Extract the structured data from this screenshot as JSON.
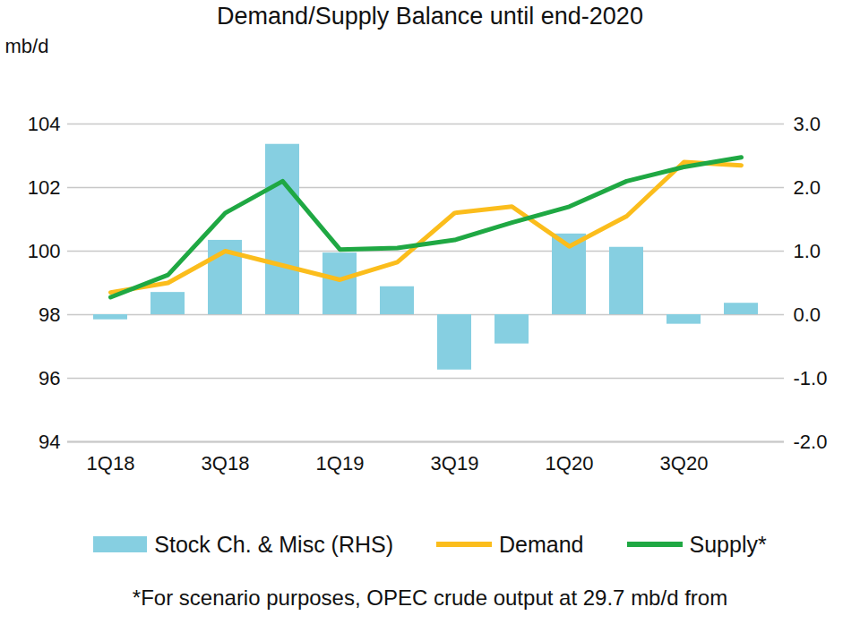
{
  "chart_data": {
    "type": "bar+line",
    "title": "Demand/Supply Balance until end-2020",
    "y_label": "mb/d",
    "caption": "*For scenario purposes, OPEC crude output at 29.7 mb/d from",
    "categories": [
      "1Q18",
      null,
      "3Q18",
      null,
      "1Q19",
      null,
      "3Q19",
      null,
      "1Q20",
      null,
      "3Q20",
      null
    ],
    "series": [
      {
        "name": "Stock Ch. & Misc (RHS)",
        "type": "bar",
        "axis": "y2",
        "color": "#86cfe1",
        "values": [
          -0.08,
          0.35,
          1.17,
          2.68,
          0.97,
          0.44,
          -0.87,
          -0.46,
          1.27,
          1.06,
          -0.15,
          0.18
        ]
      },
      {
        "name": "Demand",
        "type": "line",
        "color": "#fbbd1c",
        "values": [
          98.7,
          99.0,
          100.0,
          99.55,
          99.1,
          99.65,
          101.2,
          101.4,
          100.15,
          101.1,
          102.8,
          102.7
        ]
      },
      {
        "name": "Supply*",
        "type": "line",
        "color": "#1fa843",
        "values": [
          98.55,
          99.25,
          101.2,
          102.2,
          100.05,
          100.1,
          100.35,
          100.9,
          101.4,
          102.2,
          102.65,
          102.95
        ]
      }
    ],
    "ylim": [
      94,
      104
    ],
    "yticks": [
      94,
      96,
      98,
      100,
      102,
      104
    ],
    "y2lim": [
      -2,
      3
    ],
    "y2ticks": [
      {
        "value": -2,
        "label": "-2.0"
      },
      {
        "value": -1,
        "label": "-1.0"
      },
      {
        "value": 0,
        "label": "0.0"
      },
      {
        "value": 1,
        "label": "1.0"
      },
      {
        "value": 2,
        "label": "2.0"
      },
      {
        "value": 3,
        "label": "3.0"
      }
    ],
    "grid": true,
    "legend": "bottom"
  }
}
